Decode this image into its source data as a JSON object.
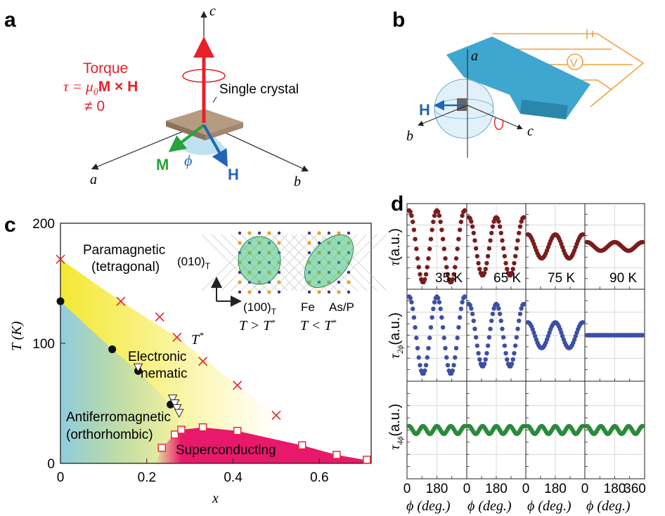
{
  "panels": {
    "a": "a",
    "b": "b",
    "c": "c",
    "d": "d"
  },
  "panel_a": {
    "axis_c": "c",
    "axis_a": "a",
    "axis_b": "b",
    "torque_title": "Torque",
    "torque_eq_tau": "τ = μ",
    "torque_eq_sub": "0",
    "torque_eq_rest": "M × H",
    "torque_neq": "≠ 0",
    "crystal_label": "Single crystal",
    "vec_M": "M",
    "vec_H": "H",
    "angle_phi": "ϕ",
    "colors": {
      "torque": "#e8202a",
      "M": "#27a33a",
      "H": "#2166b5",
      "phi": "#2166b5",
      "crystal": "#b59b80"
    }
  },
  "panel_b": {
    "axis_a": "a",
    "axis_b": "b",
    "axis_c": "c",
    "vec_H": "H",
    "voltmeter": "V",
    "colors": {
      "lever": "#3fa6cf",
      "circuit": "#f0a040",
      "H": "#2166b5"
    }
  },
  "chart_data": [
    {
      "panel": "c",
      "type": "scatter",
      "xlabel": "x",
      "ylabel": "T (K)",
      "xlim": [
        0,
        0.72
      ],
      "ylim": [
        0,
        200
      ],
      "xticks": [
        "0",
        "0.2",
        "0.4",
        "0.6"
      ],
      "yticks": [
        "0",
        "100",
        "200"
      ],
      "region_labels": {
        "paramagnetic_1": "Paramagnetic",
        "paramagnetic_2": "(tetragonal)",
        "nematic_1": "Electronic",
        "nematic_2": "nematic",
        "afm_1": "Antiferromagnetic",
        "afm_2": "(orthorhombic)",
        "sc": "Superconducting",
        "tstar": "T",
        "tstar_sup": "*"
      },
      "inset": {
        "dir_010": "(010)",
        "dir_010_sub": "T",
        "dir_100": "(100)",
        "dir_100_sub": "T",
        "cond_left": "T > T",
        "cond_left_sup": "*",
        "cond_right": "T < T",
        "cond_right_sup": "*",
        "elem_fe": "Fe",
        "elem_asp": "As/P"
      },
      "series": [
        {
          "name": "T*",
          "marker": "cross",
          "color": "#e8202a",
          "x": [
            0.0,
            0.14,
            0.23,
            0.27,
            0.33,
            0.41,
            0.5
          ],
          "y": [
            170,
            135,
            122,
            105,
            85,
            65,
            40
          ]
        },
        {
          "name": "T_s",
          "marker": "circle",
          "color": "#111111",
          "x": [
            0.0,
            0.12,
            0.18,
            0.255
          ],
          "y": [
            135,
            95,
            77,
            49
          ]
        },
        {
          "name": "T_N",
          "marker": "triangle-down",
          "color": "#ffffff",
          "x": [
            0.18,
            0.26,
            0.265,
            0.27,
            0.275
          ],
          "y": [
            80,
            54,
            50,
            46,
            42
          ]
        },
        {
          "name": "T_c",
          "marker": "square",
          "color": "#e8202a",
          "x": [
            0.235,
            0.265,
            0.28,
            0.33,
            0.41,
            0.56,
            0.64,
            0.71
          ],
          "y": [
            13,
            24,
            28,
            30,
            27,
            15,
            7,
            3
          ]
        }
      ],
      "colors": {
        "afm": "#8fcde0",
        "nematic": "#f4e832",
        "sc": "#e8196a"
      }
    },
    {
      "panel": "d",
      "type": "line",
      "xlabel": "ϕ (deg.)",
      "xticks": [
        "0",
        "180",
        "360"
      ],
      "columns": [
        "35 K",
        "65 K",
        "75 K",
        "90 K"
      ],
      "x_range": [
        0,
        360
      ],
      "rows": [
        {
          "label": "τ (a.u.)",
          "label_sym": "τ",
          "label_sub": "",
          "label_unit": "(a.u.)",
          "color": "#7a1c1c",
          "amplitude_2phi": [
            0.42,
            0.34,
            0.14,
            0.05
          ],
          "offset": [
            0,
            0,
            0,
            0
          ]
        },
        {
          "label": "τ2ϕ (a.u.)",
          "label_sym": "τ",
          "label_sub": "2ϕ",
          "label_unit": "(a.u.)",
          "color": "#3c4fa6",
          "amplitude_2phi": [
            0.42,
            0.34,
            0.14,
            0.0
          ],
          "offset": [
            0,
            0,
            0,
            0
          ]
        },
        {
          "label": "τ4ϕ (a.u.)",
          "label_sym": "τ",
          "label_sub": "4ϕ",
          "label_unit": "(a.u.)",
          "color": "#2a8a3a",
          "amplitude_4phi": [
            0.04,
            0.04,
            0.04,
            0.04
          ],
          "offset": [
            0,
            0,
            0,
            0
          ]
        }
      ]
    }
  ]
}
